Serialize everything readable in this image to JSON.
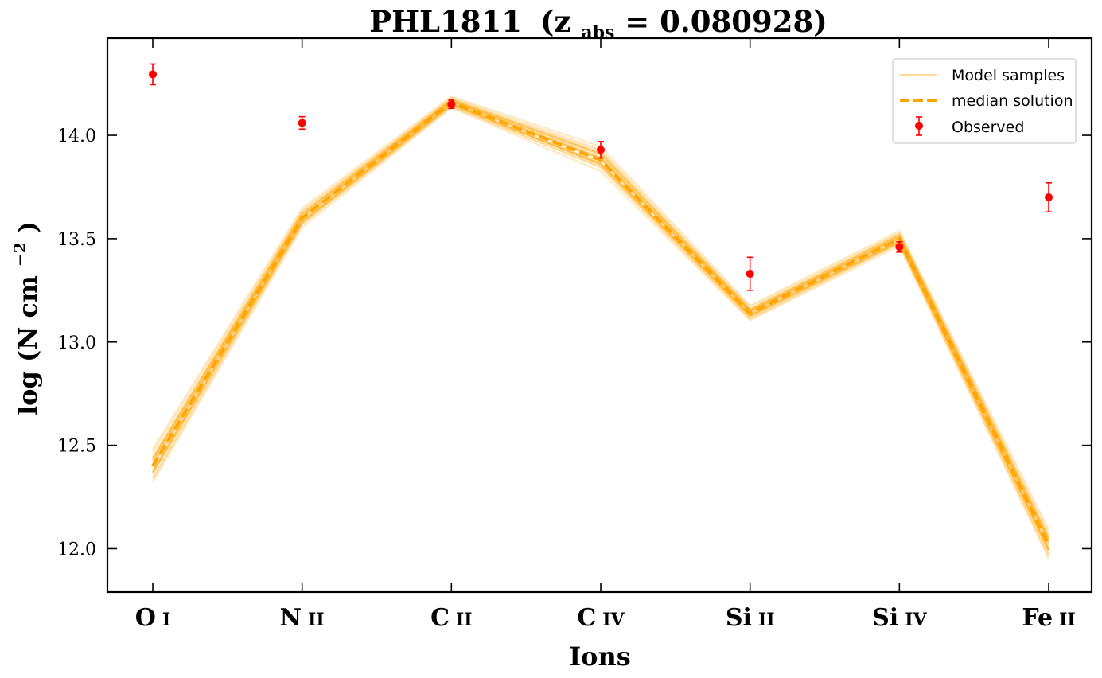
{
  "chart_data": {
    "type": "line",
    "title": {
      "name": "PHL1811",
      "open": "(z",
      "subscript": "abs",
      "rest": " = 0.080928)"
    },
    "xlabel": "Ions",
    "ylabel": {
      "main": "log (N cm",
      "superscript": "−2",
      "close": ")"
    },
    "categories": [
      {
        "element": "O",
        "stage": "I"
      },
      {
        "element": "N",
        "stage": "II"
      },
      {
        "element": "C",
        "stage": "II"
      },
      {
        "element": "C",
        "stage": "IV"
      },
      {
        "element": "Si",
        "stage": "II"
      },
      {
        "element": "Si",
        "stage": "IV"
      },
      {
        "element": "Fe",
        "stage": "II"
      }
    ],
    "ylim": [
      11.79,
      14.47
    ],
    "yticks": [
      "12.0",
      "12.5",
      "13.0",
      "13.5",
      "14.0"
    ],
    "ytick_values": [
      12.0,
      12.5,
      13.0,
      13.5,
      14.0
    ],
    "grid": false,
    "legend_position": "top-right",
    "series": [
      {
        "name": "Model samples",
        "style": "thin-band",
        "color": "#ffa500",
        "band_low": [
          12.31,
          13.55,
          14.13,
          13.82,
          13.1,
          13.46,
          11.94
        ],
        "band_high": [
          12.49,
          13.65,
          14.19,
          13.95,
          13.18,
          13.54,
          12.1
        ]
      },
      {
        "name": "median solution",
        "style": "dashed",
        "color": "#ffa500",
        "values": [
          12.4,
          13.6,
          14.16,
          13.88,
          13.14,
          13.5,
          12.02
        ]
      },
      {
        "name": "Observed",
        "style": "errorbar",
        "color": "#ff0000",
        "values": [
          14.295,
          14.06,
          14.15,
          13.93,
          13.33,
          13.46,
          13.7
        ],
        "errors": [
          0.05,
          0.03,
          0.02,
          0.04,
          0.08,
          0.025,
          0.07
        ]
      }
    ]
  },
  "colors": {
    "model": "#ffa500",
    "observed": "#ff0000",
    "axes": "#000000"
  }
}
